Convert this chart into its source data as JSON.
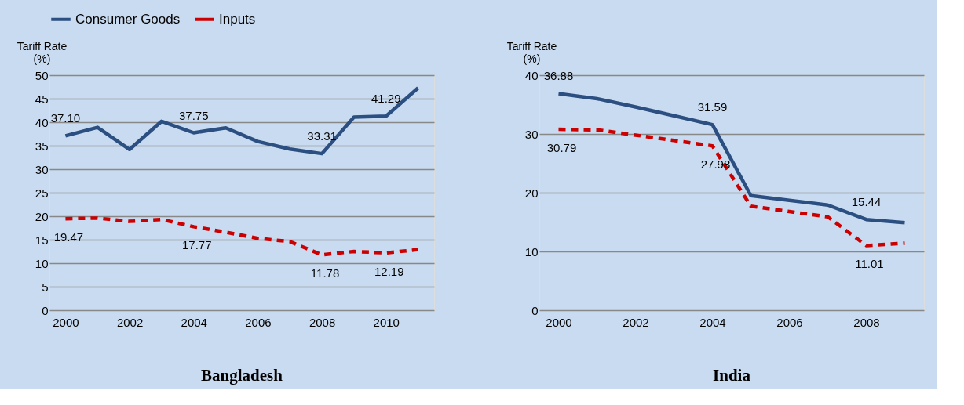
{
  "chart_data": [
    {
      "type": "line",
      "title": "Bangladesh",
      "ylabel": "Tariff Rate (%)",
      "x": [
        2000,
        2001,
        2002,
        2003,
        2004,
        2005,
        2006,
        2007,
        2008,
        2009,
        2010,
        2011
      ],
      "xlim": [
        1999.5,
        2011.5
      ],
      "xticks": [
        2000,
        2002,
        2004,
        2006,
        2008,
        2010
      ],
      "ylim": [
        0,
        50
      ],
      "yticks": [
        0,
        5,
        10,
        15,
        20,
        25,
        30,
        35,
        40,
        45,
        50
      ],
      "grid": "y",
      "legend": "top",
      "marker": "none",
      "series": [
        {
          "name": "Consumer Goods",
          "color": "#2a4f80",
          "line_style": "solid",
          "values": [
            37.1,
            38.9,
            34.2,
            40.2,
            37.75,
            38.8,
            35.9,
            34.3,
            33.31,
            41.1,
            41.29,
            47.3
          ],
          "value_labels": [
            "37.10",
            null,
            null,
            null,
            "37.75",
            null,
            null,
            null,
            "33.31",
            null,
            "41.29",
            null
          ]
        },
        {
          "name": "Inputs",
          "color": "#cc0000",
          "line_style": "dashed",
          "values": [
            19.47,
            19.6,
            18.9,
            19.3,
            17.77,
            16.6,
            15.3,
            14.6,
            11.78,
            12.5,
            12.19,
            12.9
          ],
          "value_labels": [
            "19.47",
            null,
            null,
            null,
            "17.77",
            null,
            null,
            null,
            "11.78",
            null,
            "12.19",
            null
          ]
        }
      ]
    },
    {
      "type": "line",
      "title": "India",
      "ylabel": "Tariff Rate (%)",
      "x": [
        2000,
        2001,
        2002,
        2003,
        2004,
        2005,
        2006,
        2007,
        2008,
        2009
      ],
      "xlim": [
        1999.5,
        2009.5
      ],
      "xticks": [
        2000,
        2002,
        2004,
        2006,
        2008
      ],
      "ylim": [
        0,
        40
      ],
      "yticks": [
        0,
        10,
        20,
        30,
        40
      ],
      "grid": "y",
      "legend": "top",
      "marker": "none",
      "series": [
        {
          "name": "Consumer Goods",
          "color": "#2a4f80",
          "line_style": "solid",
          "values": [
            36.88,
            36.0,
            34.6,
            33.1,
            31.59,
            19.5,
            18.7,
            17.9,
            15.44,
            14.9
          ],
          "value_labels": [
            "36.88",
            null,
            null,
            null,
            "31.59",
            null,
            null,
            null,
            "15.44",
            null
          ]
        },
        {
          "name": "Inputs",
          "color": "#cc0000",
          "line_style": "dashed",
          "values": [
            30.79,
            30.7,
            29.8,
            28.9,
            27.98,
            17.7,
            16.8,
            15.9,
            11.01,
            11.4
          ],
          "value_labels": [
            "30.79",
            null,
            null,
            null,
            "27.98",
            null,
            null,
            null,
            "11.01",
            null
          ]
        }
      ]
    }
  ]
}
